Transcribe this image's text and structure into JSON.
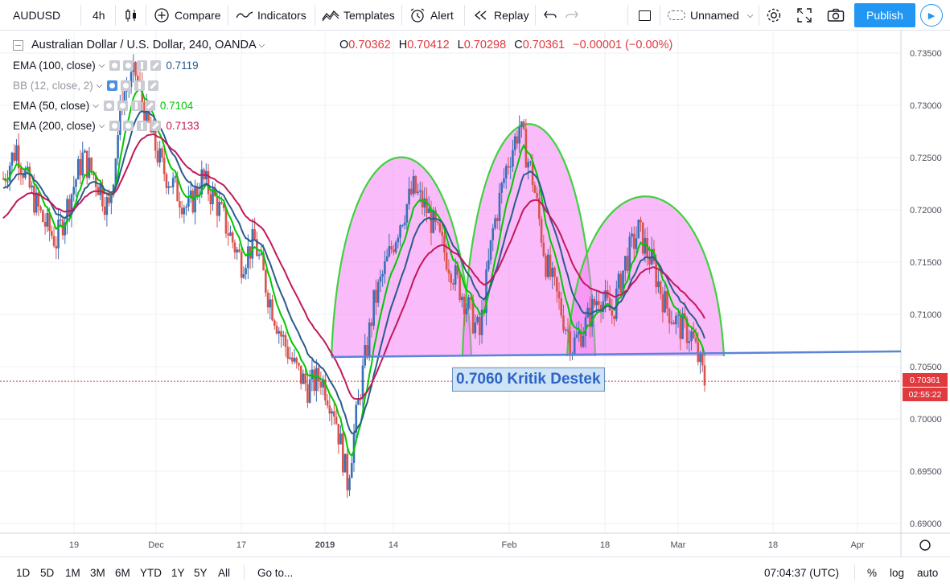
{
  "toolbar": {
    "symbol": "AUDUSD",
    "interval": "4h",
    "compare": "Compare",
    "indicators": "Indicators",
    "templates": "Templates",
    "alert": "Alert",
    "replay": "Replay",
    "layout_name": "Unnamed",
    "publish": "Publish"
  },
  "legend": {
    "title": "Australian Dollar / U.S. Dollar, 240, OANDA",
    "ohlc": {
      "o_label": "O",
      "o": "0.70362",
      "h_label": "H",
      "h": "0.70412",
      "l_label": "L",
      "l": "0.70298",
      "c_label": "C",
      "c": "0.70361",
      "change": "−0.00001 (−0.00%)"
    },
    "indicators": [
      {
        "name": "EMA (100, close)",
        "value": "0.7119",
        "color": "#2a5b8c"
      },
      {
        "name": "BB (12, close, 2)",
        "value": "",
        "color": "#9598a1"
      },
      {
        "name": "EMA (50, close)",
        "value": "0.7104",
        "color": "#00c800"
      },
      {
        "name": "EMA (200, close)",
        "value": "0.7133",
        "color": "#c2185b"
      }
    ]
  },
  "annotation": "0.7060 Kritik Destek",
  "price_labels": {
    "last_price": "0.70361",
    "countdown": "02:55:22"
  },
  "chart_data": {
    "type": "line",
    "subtype": "candlestick",
    "ylim": [
      0.688,
      0.7375
    ],
    "y_ticks": [
      "0.73500",
      "0.73000",
      "0.72500",
      "0.72000",
      "0.71500",
      "0.71000",
      "0.70500",
      "0.70000",
      "0.69500",
      "0.69000"
    ],
    "x_ticks": [
      "19",
      "Dec",
      "17",
      "2019",
      "14",
      "Feb",
      "18",
      "Mar",
      "18",
      "Apr"
    ],
    "grid": true,
    "series": [
      {
        "name": "AUDUSD",
        "color": "#e0393e",
        "values_close_approx": [
          0.723,
          0.726,
          0.722,
          0.719,
          0.717,
          0.721,
          0.725,
          0.723,
          0.72,
          0.731,
          0.733,
          0.728,
          0.724,
          0.722,
          0.72,
          0.723,
          0.721,
          0.718,
          0.715,
          0.717,
          0.712,
          0.708,
          0.705,
          0.703,
          0.704,
          0.701,
          0.694,
          0.703,
          0.711,
          0.715,
          0.719,
          0.722,
          0.72,
          0.717,
          0.714,
          0.711,
          0.708,
          0.718,
          0.724,
          0.728,
          0.723,
          0.715,
          0.711,
          0.707,
          0.709,
          0.712,
          0.71,
          0.715,
          0.718,
          0.715,
          0.711,
          0.709,
          0.708,
          0.7036
        ]
      },
      {
        "name": "EMA (50, close)",
        "color": "#00c800",
        "last": 0.7104
      },
      {
        "name": "EMA (100, close)",
        "color": "#2a5b8c",
        "last": 0.7119
      },
      {
        "name": "EMA (200, close)",
        "color": "#c2185b",
        "last": 0.7133
      },
      {
        "name": "Support line",
        "color": "#5b84d8",
        "value": 0.706
      }
    ]
  },
  "bottombar": {
    "ranges": [
      "1D",
      "5D",
      "1M",
      "3M",
      "6M",
      "YTD",
      "1Y",
      "5Y",
      "All"
    ],
    "goto": "Go to...",
    "time": "07:04:37 (UTC)",
    "percent": "%",
    "log": "log",
    "auto": "auto"
  }
}
